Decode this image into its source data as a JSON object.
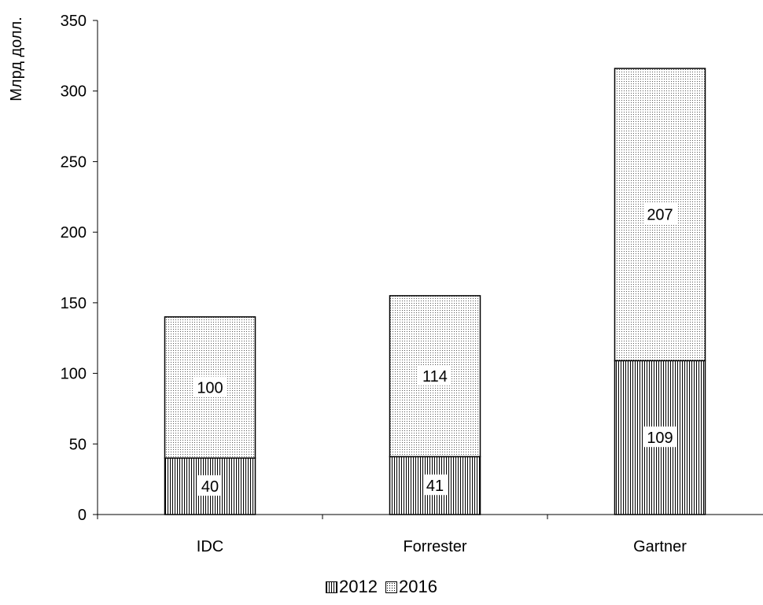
{
  "chart_data": {
    "type": "bar",
    "stacked": true,
    "categories": [
      "IDC",
      "Forrester",
      "Gartner"
    ],
    "series": [
      {
        "name": "2012",
        "values": [
          40,
          41,
          109
        ],
        "pattern": "vertical-lines"
      },
      {
        "name": "2016",
        "values": [
          100,
          114,
          207
        ],
        "pattern": "dots"
      }
    ],
    "ylabel": "Млрд долл.",
    "xlabel": "",
    "ylim": [
      0,
      350
    ],
    "yticks": [
      0,
      50,
      100,
      150,
      200,
      250,
      300,
      350
    ],
    "grid": false,
    "legend_position": "bottom"
  }
}
